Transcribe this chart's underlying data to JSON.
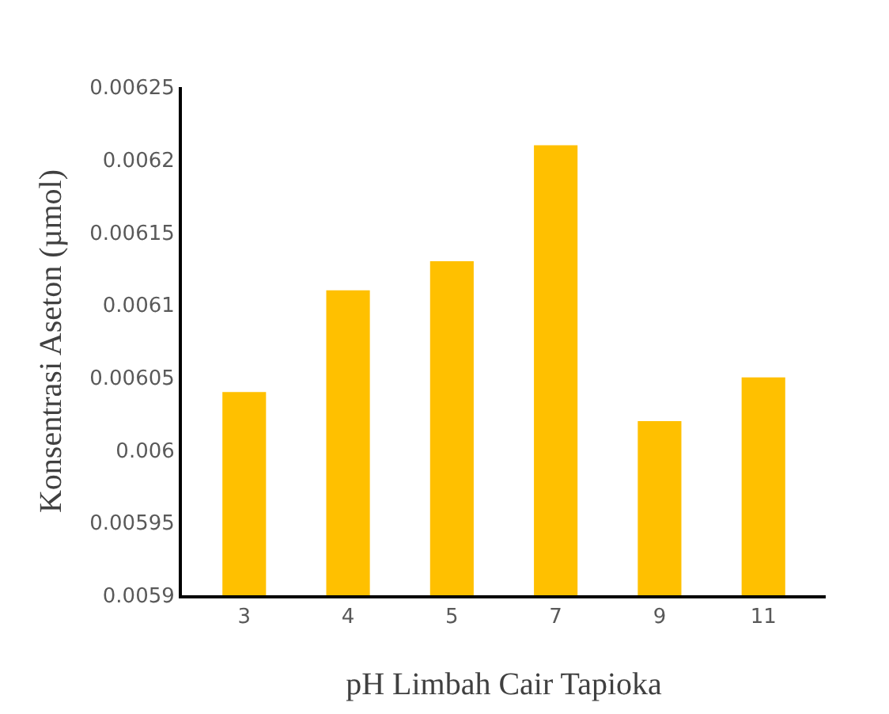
{
  "chart_data": {
    "type": "bar",
    "xlabel": "pH Limbah Cair Tapioka",
    "ylabel": "Konsentrasi Aseton (µmol)",
    "categories": [
      "3",
      "4",
      "5",
      "7",
      "9",
      "11"
    ],
    "values": [
      0.00604,
      0.00611,
      0.00613,
      0.00621,
      0.00602,
      0.00605
    ],
    "color": "#ffc000",
    "ylim": [
      0.0059,
      0.00625
    ],
    "yticks": [
      0.0059,
      0.00595,
      0.006,
      0.00605,
      0.0061,
      0.00615,
      0.0062,
      0.00625
    ],
    "grid": false,
    "legend": false
  }
}
